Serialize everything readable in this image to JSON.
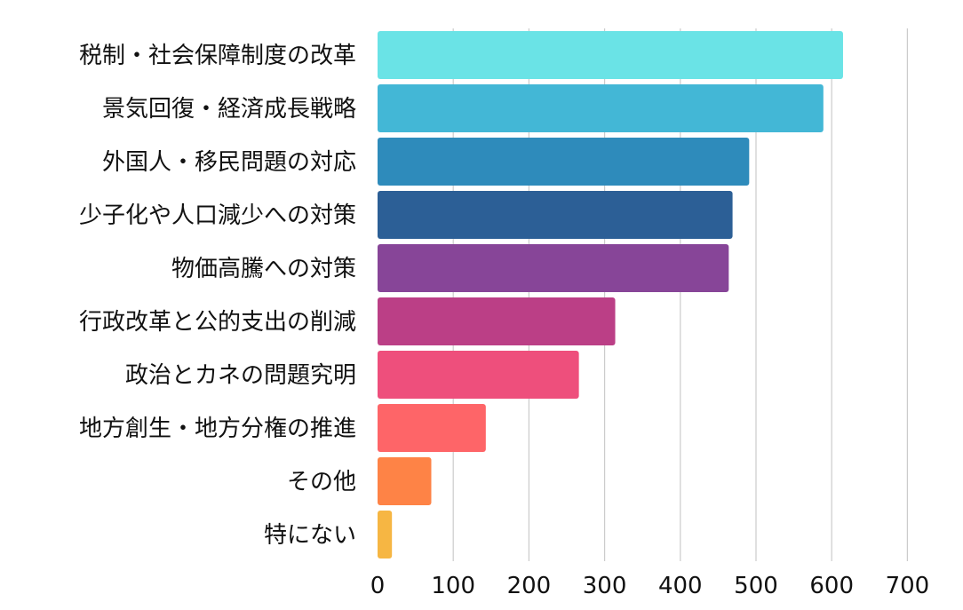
{
  "chart_data": {
    "type": "bar",
    "orientation": "horizontal",
    "title": "",
    "xlabel": "",
    "ylabel": "",
    "xlim": [
      0,
      700
    ],
    "xticks": [
      0,
      100,
      200,
      300,
      400,
      500,
      600,
      700
    ],
    "grid": true,
    "categories": [
      "税制・社会保障制度の改革",
      "景気回復・経済成長戦略",
      "外国人・移民問題の対応",
      "少子化や人口減少への対策",
      "物価高騰への対策",
      "行政改革と公的支出の削減",
      "政治とカネの問題究明",
      "地方創生・地方分権の推進",
      "その他",
      "特にない"
    ],
    "values": [
      615,
      589,
      491,
      469,
      464,
      314,
      266,
      143,
      71,
      19
    ],
    "colors": [
      "#6ae3e6",
      "#43b7d6",
      "#2e8bbb",
      "#2c5f96",
      "#874598",
      "#bb3f86",
      "#ee4f7c",
      "#fe6568",
      "#fe8346",
      "#f6b643"
    ]
  }
}
